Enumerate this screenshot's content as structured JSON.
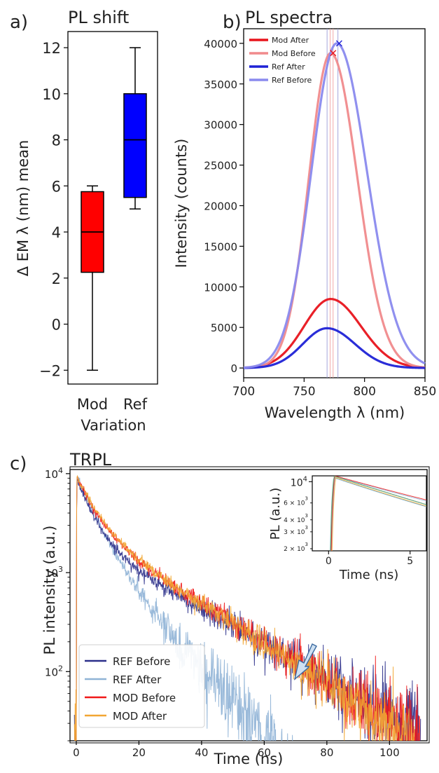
{
  "panel_labels": {
    "a": "a)",
    "b": "b)",
    "c": "c)"
  },
  "chart_data": [
    {
      "id": "a",
      "type": "boxplot",
      "title": "PL shift",
      "xlabel": "Variation",
      "ylabel": "Δ EM λ (nm) mean",
      "ylim": [
        -2.6,
        12.7
      ],
      "yticks": [
        -2,
        0,
        2,
        4,
        6,
        8,
        10,
        12
      ],
      "ytick_labels": [
        "−2",
        "0",
        "2",
        "4",
        "6",
        "8",
        "10",
        "12"
      ],
      "categories": [
        "Mod",
        "Ref"
      ],
      "boxes": [
        {
          "label": "Mod",
          "color": "#ff0000",
          "whisker_low": -2,
          "q1": 2.25,
          "median": 4,
          "q3": 5.75,
          "whisker_high": 6
        },
        {
          "label": "Ref",
          "color": "#0000ff",
          "whisker_low": 5,
          "q1": 5.5,
          "median": 8,
          "q3": 10,
          "whisker_high": 12
        }
      ]
    },
    {
      "id": "b",
      "type": "line",
      "title": "PL spectra",
      "xlabel": "Wavelength λ (nm)",
      "ylabel": "Intensity (counts)",
      "xlim": [
        700,
        850
      ],
      "ylim": [
        -1200,
        41800
      ],
      "xticks": [
        700,
        750,
        800,
        850
      ],
      "yticks": [
        0,
        5000,
        10000,
        15000,
        20000,
        25000,
        30000,
        35000,
        40000
      ],
      "legend_position": "top-left",
      "series": [
        {
          "name": "Mod After",
          "color": "#e8141c",
          "peak_x": 772,
          "peak_y": 8500,
          "sigma_left": 22,
          "sigma_right": 25,
          "baseline": 0,
          "width": 3.2
        },
        {
          "name": "Mod Before",
          "color": "#f08a8c",
          "peak_x": 772,
          "peak_y": 38800,
          "sigma_left": 18,
          "sigma_right": 22,
          "baseline": 0,
          "width": 3.2
        },
        {
          "name": "Ref After",
          "color": "#1f22d6",
          "peak_x": 769,
          "peak_y": 4900,
          "sigma_left": 20,
          "sigma_right": 23,
          "baseline": 0,
          "width": 3.2
        },
        {
          "name": "Ref Before",
          "color": "#8a8aee",
          "peak_x": 777,
          "peak_y": 40000,
          "sigma_left": 21,
          "sigma_right": 25,
          "baseline": 0,
          "width": 3.2
        }
      ],
      "peak_markers": [
        {
          "x": 774,
          "y": 38800,
          "color": "#e8141c"
        },
        {
          "x": 779,
          "y": 40000,
          "color": "#1f22d6"
        }
      ],
      "vlines": [
        {
          "x": 769,
          "color": "#9a9ad6"
        },
        {
          "x": 771.5,
          "color": "#f0a0a0"
        },
        {
          "x": 774,
          "color": "#f0a0a0"
        },
        {
          "x": 778,
          "color": "#9a9ad6"
        }
      ]
    },
    {
      "id": "c",
      "type": "line",
      "scale_y": "log",
      "title": "TRPL",
      "xlabel": "Time (ns)",
      "ylabel": "PL intensity (a.u.)",
      "xlim": [
        -2,
        112
      ],
      "ylim": [
        20,
        11000
      ],
      "xticks": [
        0,
        20,
        40,
        60,
        80,
        100
      ],
      "yticks": [
        100,
        1000,
        10000
      ],
      "ytick_labels": [
        {
          "base": "10",
          "exp": "2"
        },
        {
          "base": "10",
          "exp": "3"
        },
        {
          "base": "10",
          "exp": "4"
        }
      ],
      "legend_position": "bottom-left",
      "series": [
        {
          "name": "REF Before",
          "color": "#2b2f8a",
          "A1": 7000,
          "t1": 4.5,
          "A2": 2200,
          "t2": 24.5,
          "end_x": 110,
          "noise": 0.34
        },
        {
          "name": "REF After",
          "color": "#8fb3d6",
          "A1": 7000,
          "t1": 5.2,
          "A2": 2500,
          "t2": 12.5,
          "end_x": 70,
          "noise": 0.42
        },
        {
          "name": "MOD Before",
          "color": "#f01818",
          "A1": 6500,
          "t1": 5,
          "A2": 3000,
          "t2": 22,
          "end_x": 110,
          "noise": 0.34
        },
        {
          "name": "MOD After",
          "color": "#f2a632",
          "A1": 6500,
          "t1": 5.2,
          "A2": 3100,
          "t2": 21.5,
          "end_x": 108,
          "noise": 0.3
        }
      ],
      "inset": {
        "xlabel": "Time (ns)",
        "ylabel": "PL (a.u.)",
        "xlim": [
          -1,
          6
        ],
        "ylim": [
          1900,
          11500
        ],
        "xticks": [
          0,
          5
        ],
        "major_yticks": [
          10000
        ],
        "major_ytick_labels": [
          {
            "base": "10",
            "exp": "4"
          }
        ],
        "minor_yticks": [
          2000,
          3000,
          4000,
          6000
        ],
        "minor_ytick_labels": [
          {
            "base": "2 × 10",
            "exp": "3"
          },
          {
            "base": "3 × 10",
            "exp": "3"
          },
          {
            "base": "4 × 10",
            "exp": "3"
          },
          {
            "base": "6 × 10",
            "exp": "3"
          }
        ]
      }
    }
  ]
}
